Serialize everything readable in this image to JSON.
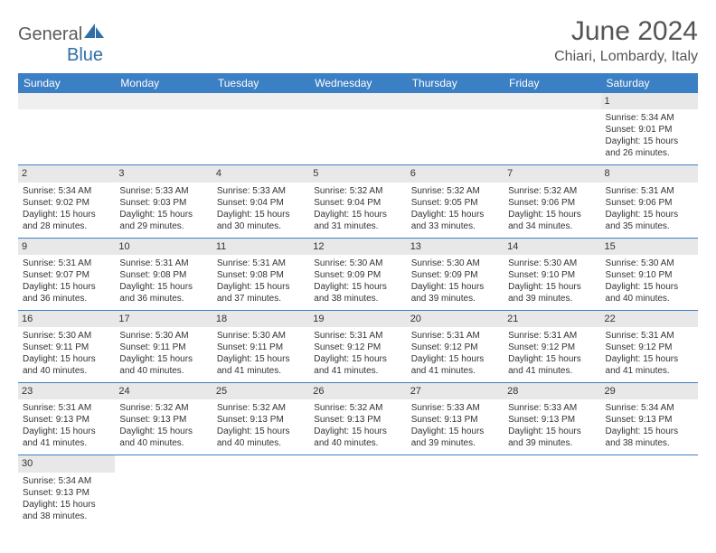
{
  "logo": {
    "general": "General",
    "blue": "Blue"
  },
  "header": {
    "title": "June 2024",
    "location": "Chiari, Lombardy, Italy"
  },
  "colors": {
    "header_bg": "#3b7fc4",
    "header_text": "#ffffff",
    "daynum_bg": "#e8e8e8",
    "border": "#3b7fc4",
    "text": "#333333",
    "subtext": "#555555",
    "logo_gray": "#5a5a5a",
    "logo_blue": "#2f6fa7"
  },
  "daysOfWeek": [
    "Sunday",
    "Monday",
    "Tuesday",
    "Wednesday",
    "Thursday",
    "Friday",
    "Saturday"
  ],
  "startCol": 6,
  "cells": [
    {
      "n": 1,
      "sr": "5:34 AM",
      "ss": "9:01 PM",
      "dl": "15 hours and 26 minutes."
    },
    {
      "n": 2,
      "sr": "5:34 AM",
      "ss": "9:02 PM",
      "dl": "15 hours and 28 minutes."
    },
    {
      "n": 3,
      "sr": "5:33 AM",
      "ss": "9:03 PM",
      "dl": "15 hours and 29 minutes."
    },
    {
      "n": 4,
      "sr": "5:33 AM",
      "ss": "9:04 PM",
      "dl": "15 hours and 30 minutes."
    },
    {
      "n": 5,
      "sr": "5:32 AM",
      "ss": "9:04 PM",
      "dl": "15 hours and 31 minutes."
    },
    {
      "n": 6,
      "sr": "5:32 AM",
      "ss": "9:05 PM",
      "dl": "15 hours and 33 minutes."
    },
    {
      "n": 7,
      "sr": "5:32 AM",
      "ss": "9:06 PM",
      "dl": "15 hours and 34 minutes."
    },
    {
      "n": 8,
      "sr": "5:31 AM",
      "ss": "9:06 PM",
      "dl": "15 hours and 35 minutes."
    },
    {
      "n": 9,
      "sr": "5:31 AM",
      "ss": "9:07 PM",
      "dl": "15 hours and 36 minutes."
    },
    {
      "n": 10,
      "sr": "5:31 AM",
      "ss": "9:08 PM",
      "dl": "15 hours and 36 minutes."
    },
    {
      "n": 11,
      "sr": "5:31 AM",
      "ss": "9:08 PM",
      "dl": "15 hours and 37 minutes."
    },
    {
      "n": 12,
      "sr": "5:30 AM",
      "ss": "9:09 PM",
      "dl": "15 hours and 38 minutes."
    },
    {
      "n": 13,
      "sr": "5:30 AM",
      "ss": "9:09 PM",
      "dl": "15 hours and 39 minutes."
    },
    {
      "n": 14,
      "sr": "5:30 AM",
      "ss": "9:10 PM",
      "dl": "15 hours and 39 minutes."
    },
    {
      "n": 15,
      "sr": "5:30 AM",
      "ss": "9:10 PM",
      "dl": "15 hours and 40 minutes."
    },
    {
      "n": 16,
      "sr": "5:30 AM",
      "ss": "9:11 PM",
      "dl": "15 hours and 40 minutes."
    },
    {
      "n": 17,
      "sr": "5:30 AM",
      "ss": "9:11 PM",
      "dl": "15 hours and 40 minutes."
    },
    {
      "n": 18,
      "sr": "5:30 AM",
      "ss": "9:11 PM",
      "dl": "15 hours and 41 minutes."
    },
    {
      "n": 19,
      "sr": "5:31 AM",
      "ss": "9:12 PM",
      "dl": "15 hours and 41 minutes."
    },
    {
      "n": 20,
      "sr": "5:31 AM",
      "ss": "9:12 PM",
      "dl": "15 hours and 41 minutes."
    },
    {
      "n": 21,
      "sr": "5:31 AM",
      "ss": "9:12 PM",
      "dl": "15 hours and 41 minutes."
    },
    {
      "n": 22,
      "sr": "5:31 AM",
      "ss": "9:12 PM",
      "dl": "15 hours and 41 minutes."
    },
    {
      "n": 23,
      "sr": "5:31 AM",
      "ss": "9:13 PM",
      "dl": "15 hours and 41 minutes."
    },
    {
      "n": 24,
      "sr": "5:32 AM",
      "ss": "9:13 PM",
      "dl": "15 hours and 40 minutes."
    },
    {
      "n": 25,
      "sr": "5:32 AM",
      "ss": "9:13 PM",
      "dl": "15 hours and 40 minutes."
    },
    {
      "n": 26,
      "sr": "5:32 AM",
      "ss": "9:13 PM",
      "dl": "15 hours and 40 minutes."
    },
    {
      "n": 27,
      "sr": "5:33 AM",
      "ss": "9:13 PM",
      "dl": "15 hours and 39 minutes."
    },
    {
      "n": 28,
      "sr": "5:33 AM",
      "ss": "9:13 PM",
      "dl": "15 hours and 39 minutes."
    },
    {
      "n": 29,
      "sr": "5:34 AM",
      "ss": "9:13 PM",
      "dl": "15 hours and 38 minutes."
    },
    {
      "n": 30,
      "sr": "5:34 AM",
      "ss": "9:13 PM",
      "dl": "15 hours and 38 minutes."
    }
  ],
  "labels": {
    "sunrise": "Sunrise: ",
    "sunset": "Sunset: ",
    "daylight": "Daylight: "
  }
}
